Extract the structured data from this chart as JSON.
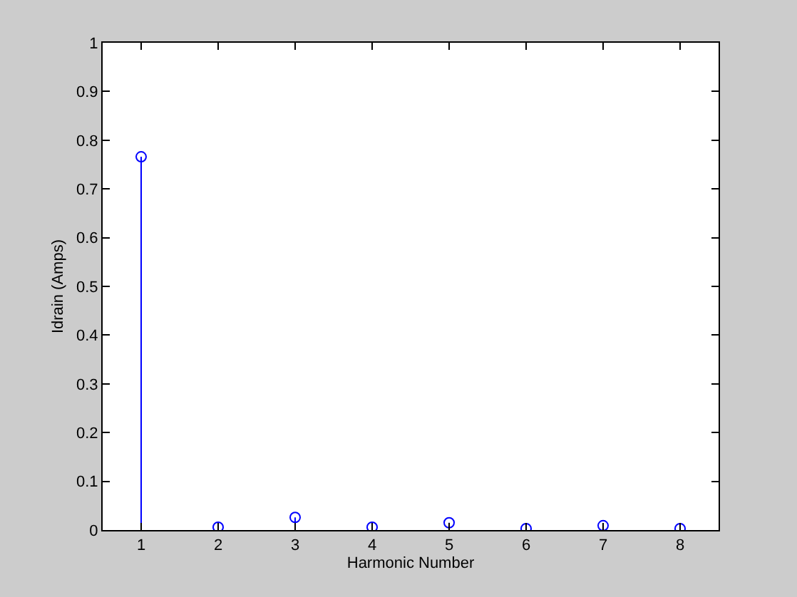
{
  "chart_data": {
    "type": "lollipop",
    "xlabel": "Harmonic Number",
    "ylabel": "Idrain (Amps)",
    "x": [
      1,
      2,
      3,
      4,
      5,
      6,
      7,
      8
    ],
    "values": [
      0.766,
      0.006,
      0.026,
      0.006,
      0.015,
      0.003,
      0.009,
      0.003
    ],
    "color": "#0000ff",
    "marker": "circle",
    "xlim": [
      0.5,
      8.5
    ],
    "xticks": [
      1,
      2,
      3,
      4,
      5,
      6,
      7,
      8
    ],
    "ylim": [
      0,
      1
    ],
    "yticks": [
      0,
      0.1,
      0.2,
      0.3,
      0.4,
      0.5,
      0.6,
      0.7,
      0.8,
      0.9,
      1
    ]
  }
}
